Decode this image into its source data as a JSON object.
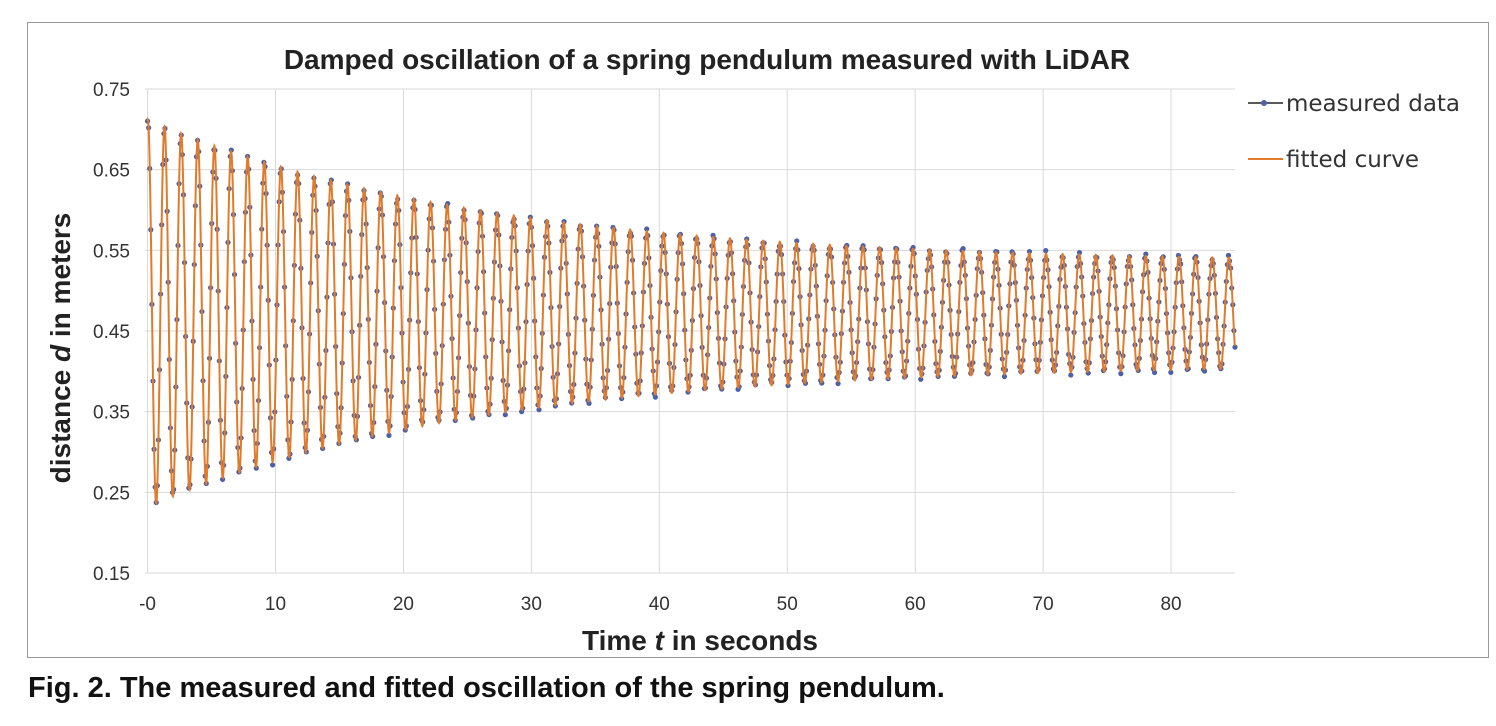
{
  "caption": "Fig. 2. The measured and fitted oscillation of the spring pendulum.",
  "colors": {
    "measured": "#4A60A8",
    "fitted": "#E07B2C",
    "grid": "#d9d9d9"
  },
  "chart_data": {
    "type": "line",
    "title": "Damped oscillation of a spring pendulum measured with LiDAR",
    "xlabel_parts": [
      "Time ",
      "t",
      " in seconds"
    ],
    "ylabel_parts": [
      "distance ",
      "d",
      " in meters"
    ],
    "xlim": [
      -0.2,
      85
    ],
    "ylim": [
      0.15,
      0.75
    ],
    "x_ticks": [
      0,
      10,
      20,
      30,
      40,
      50,
      60,
      70,
      80
    ],
    "x_tick_labels": [
      "-0",
      "10",
      "20",
      "30",
      "40",
      "50",
      "60",
      "70",
      "80"
    ],
    "y_ticks": [
      0.15,
      0.25,
      0.35,
      0.45,
      0.55,
      0.65,
      0.75
    ],
    "y_tick_labels": [
      "0.15",
      "0.25",
      "0.35",
      "0.45",
      "0.55",
      "0.65",
      "0.75"
    ],
    "grid": true,
    "legend": "right",
    "series": [
      {
        "name": "measured data",
        "style": "line-with-markers"
      },
      {
        "name": "fitted curve",
        "style": "line"
      }
    ],
    "model": {
      "equilibrium": 0.472,
      "amplitude_start": 0.24,
      "amplitude_end": 0.062,
      "decay_time_s": 26.0,
      "period_s": 1.3,
      "phase": 1.45
    }
  }
}
